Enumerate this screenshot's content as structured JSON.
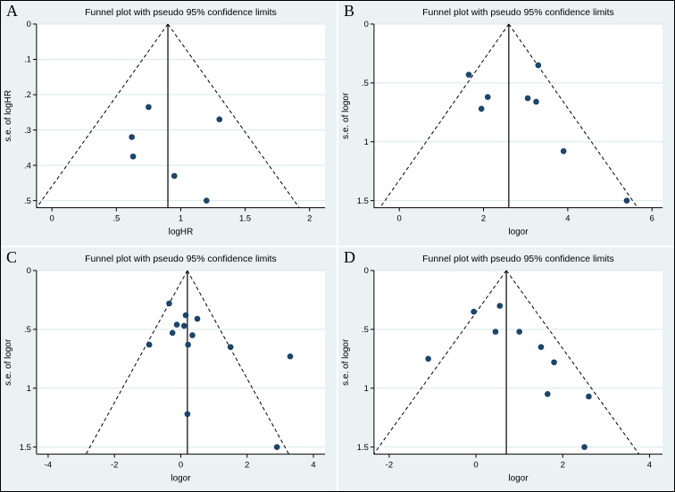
{
  "figure": {
    "background": "#ffffff",
    "panel_background": "#eaf2f3",
    "plot_background": "#ffffff",
    "grid_color": "#d8e8ea",
    "marker_color": "#1a476f",
    "marker_stroke": "#12365a",
    "line_color": "#000000"
  },
  "chart_data": [
    {
      "type": "scatter",
      "panel_label": "A",
      "title": "Funnel plot with pseudo 95% confidence limits",
      "xlabel": "logHR",
      "ylabel": "s.e. of logHR",
      "xlim": [
        -0.12,
        2.12
      ],
      "ylim": [
        0,
        0.52
      ],
      "xticks": [
        0,
        0.5,
        1,
        1.5,
        2
      ],
      "xtick_labels": [
        "0",
        ".5",
        "1",
        "1.5",
        "2"
      ],
      "yticks": [
        0,
        0.1,
        0.2,
        0.3,
        0.4,
        0.5
      ],
      "ytick_labels": [
        "0",
        ".1",
        ".2",
        ".3",
        ".4",
        ".5"
      ],
      "funnel_center": 0.9,
      "ci_multiplier": 1.96,
      "legend": "none",
      "grid": "horizontal",
      "points": [
        [
          0.75,
          0.235
        ],
        [
          1.3,
          0.27
        ],
        [
          0.62,
          0.32
        ],
        [
          0.63,
          0.375
        ],
        [
          0.95,
          0.43
        ],
        [
          1.2,
          0.5
        ]
      ]
    },
    {
      "type": "scatter",
      "panel_label": "B",
      "title": "Funnel plot with pseudo 95% confidence limits",
      "xlabel": "logor",
      "ylabel": "s.e. of logor",
      "xlim": [
        -0.6,
        6.25
      ],
      "ylim": [
        0,
        1.56
      ],
      "xticks": [
        0,
        2,
        4,
        6
      ],
      "xtick_labels": [
        "0",
        "2",
        "4",
        "6"
      ],
      "yticks": [
        0,
        0.5,
        1,
        1.5
      ],
      "ytick_labels": [
        "0",
        ".5",
        "1",
        "1.5"
      ],
      "funnel_center": 2.6,
      "ci_multiplier": 1.96,
      "legend": "none",
      "grid": "horizontal",
      "points": [
        [
          1.65,
          0.43
        ],
        [
          2.1,
          0.62
        ],
        [
          1.95,
          0.72
        ],
        [
          3.3,
          0.35
        ],
        [
          3.05,
          0.63
        ],
        [
          3.25,
          0.66
        ],
        [
          3.9,
          1.08
        ],
        [
          5.4,
          1.5
        ]
      ]
    },
    {
      "type": "scatter",
      "panel_label": "C",
      "title": "Funnel plot with pseudo 95% confidence limits",
      "xlabel": "logor",
      "ylabel": "s.e. of logor",
      "xlim": [
        -4.35,
        4.35
      ],
      "ylim": [
        0,
        1.56
      ],
      "xticks": [
        -4,
        -2,
        0,
        2,
        4
      ],
      "xtick_labels": [
        "-4",
        "-2",
        "0",
        "2",
        "4"
      ],
      "yticks": [
        0,
        0.5,
        1,
        1.5
      ],
      "ytick_labels": [
        "0",
        ".5",
        "1",
        "1.5"
      ],
      "funnel_center": 0.2,
      "ci_multiplier": 1.96,
      "legend": "none",
      "grid": "horizontal",
      "points": [
        [
          -0.35,
          0.28
        ],
        [
          0.15,
          0.38
        ],
        [
          0.5,
          0.41
        ],
        [
          -0.12,
          0.46
        ],
        [
          0.1,
          0.47
        ],
        [
          -0.25,
          0.53
        ],
        [
          0.35,
          0.55
        ],
        [
          -0.95,
          0.63
        ],
        [
          0.22,
          0.63
        ],
        [
          1.5,
          0.65
        ],
        [
          3.3,
          0.73
        ],
        [
          0.2,
          1.22
        ],
        [
          2.9,
          1.5
        ]
      ]
    },
    {
      "type": "scatter",
      "panel_label": "D",
      "title": "Funnel plot with pseudo 95% confidence limits",
      "xlabel": "logor",
      "ylabel": "s.e. of logor",
      "xlim": [
        -2.35,
        4.3
      ],
      "ylim": [
        0,
        1.56
      ],
      "xticks": [
        -2,
        0,
        2,
        4
      ],
      "xtick_labels": [
        "-2",
        "0",
        "2",
        "4"
      ],
      "yticks": [
        0,
        0.5,
        1,
        1.5
      ],
      "ytick_labels": [
        "0",
        ".5",
        "1",
        "1.5"
      ],
      "funnel_center": 0.7,
      "ci_multiplier": 1.96,
      "legend": "none",
      "grid": "horizontal",
      "points": [
        [
          -1.1,
          0.75
        ],
        [
          -0.05,
          0.35
        ],
        [
          0.55,
          0.3
        ],
        [
          0.45,
          0.52
        ],
        [
          1.0,
          0.52
        ],
        [
          1.5,
          0.65
        ],
        [
          1.8,
          0.78
        ],
        [
          1.65,
          1.05
        ],
        [
          2.6,
          1.07
        ],
        [
          2.5,
          1.5
        ]
      ]
    }
  ]
}
